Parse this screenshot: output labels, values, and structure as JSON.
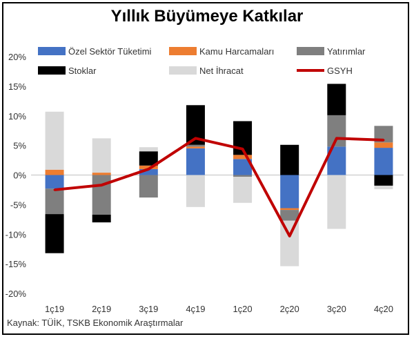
{
  "chart_data": {
    "type": "bar",
    "stacked": true,
    "title": "Yıllık Büyümeye Katkılar",
    "source": "Kaynak: TÜİK, TSKB Ekonomik Araştırmalar",
    "categories": [
      "1ç19",
      "2ç19",
      "3ç19",
      "4ç19",
      "1ç20",
      "2ç20",
      "3ç20",
      "4ç20"
    ],
    "ylim": [
      -20,
      20
    ],
    "yticks": [
      20,
      15,
      10,
      5,
      0,
      -5,
      -10,
      -15,
      -20
    ],
    "ytick_labels": [
      "20%",
      "15%",
      "10%",
      "5%",
      "0%",
      "-5%",
      "-10%",
      "-15%",
      "-20%"
    ],
    "grid": false,
    "legend_position": "top",
    "series": [
      {
        "name": "Özel Sektör Tüketimi",
        "color": "#4472C4",
        "values": [
          -2.3,
          0.0,
          1.0,
          4.5,
          2.7,
          -5.6,
          4.8,
          4.6
        ]
      },
      {
        "name": "Kamu Harcamaları",
        "color": "#ED7D31",
        "values": [
          0.9,
          0.4,
          0.6,
          0.3,
          0.7,
          -0.3,
          0.0,
          0.9
        ]
      },
      {
        "name": "Yatırımlar",
        "color": "#7F7F7F",
        "values": [
          -4.3,
          -6.7,
          -3.8,
          0.3,
          -0.3,
          -1.8,
          5.3,
          2.8
        ]
      },
      {
        "name": "Stoklar",
        "color": "#000000",
        "values": [
          -6.6,
          -1.3,
          2.4,
          6.7,
          5.7,
          5.1,
          5.3,
          -1.8
        ]
      },
      {
        "name": "Net İhracat",
        "color": "#D9D9D9",
        "values": [
          9.8,
          5.8,
          0.7,
          -5.4,
          -4.4,
          -7.7,
          -9.1,
          -0.6
        ]
      },
      {
        "name": "GSYH",
        "color": "#C00000",
        "type": "line",
        "values": [
          -2.5,
          -1.7,
          1.0,
          6.2,
          4.4,
          -10.3,
          6.2,
          5.9
        ]
      }
    ]
  }
}
